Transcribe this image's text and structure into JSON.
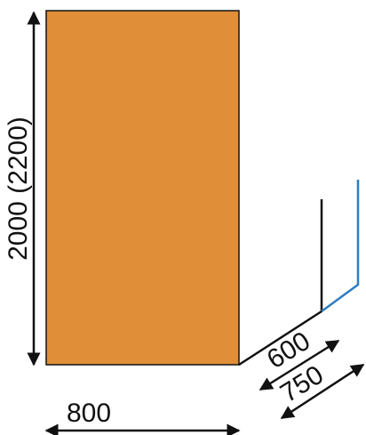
{
  "diagram": {
    "panel_fill": "#E08E38",
    "colors": {
      "line": "#111111",
      "depth_alt": "#2E7BC0"
    },
    "labels": {
      "height": "2000 (2200)",
      "width": "800",
      "depth_short": "600",
      "depth_long": "750"
    }
  }
}
